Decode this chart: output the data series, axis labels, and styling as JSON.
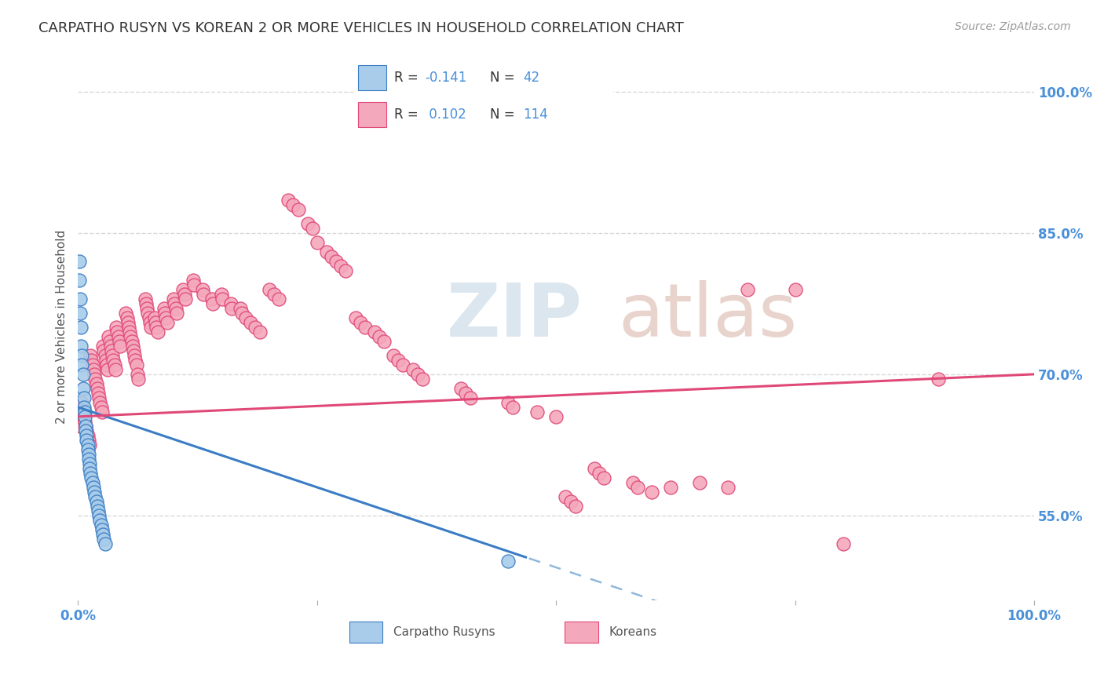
{
  "title": "CARPATHO RUSYN VS KOREAN 2 OR MORE VEHICLES IN HOUSEHOLD CORRELATION CHART",
  "source": "Source: ZipAtlas.com",
  "ylabel": "2 or more Vehicles in Household",
  "ytick_labels": [
    "100.0%",
    "85.0%",
    "70.0%",
    "55.0%"
  ],
  "ytick_values": [
    1.0,
    0.85,
    0.7,
    0.55
  ],
  "xlim": [
    0.0,
    1.0
  ],
  "ylim": [
    0.46,
    1.04
  ],
  "blue_R": -0.141,
  "blue_N": 42,
  "pink_R": 0.102,
  "pink_N": 114,
  "blue_scatter": [
    [
      0.001,
      0.82
    ],
    [
      0.001,
      0.8
    ],
    [
      0.002,
      0.78
    ],
    [
      0.002,
      0.765
    ],
    [
      0.003,
      0.75
    ],
    [
      0.003,
      0.73
    ],
    [
      0.004,
      0.72
    ],
    [
      0.004,
      0.71
    ],
    [
      0.005,
      0.7
    ],
    [
      0.005,
      0.685
    ],
    [
      0.006,
      0.675
    ],
    [
      0.006,
      0.665
    ],
    [
      0.007,
      0.66
    ],
    [
      0.007,
      0.655
    ],
    [
      0.008,
      0.645
    ],
    [
      0.008,
      0.64
    ],
    [
      0.009,
      0.635
    ],
    [
      0.009,
      0.63
    ],
    [
      0.01,
      0.625
    ],
    [
      0.01,
      0.62
    ],
    [
      0.011,
      0.615
    ],
    [
      0.011,
      0.61
    ],
    [
      0.012,
      0.605
    ],
    [
      0.012,
      0.6
    ],
    [
      0.013,
      0.595
    ],
    [
      0.014,
      0.59
    ],
    [
      0.015,
      0.585
    ],
    [
      0.016,
      0.58
    ],
    [
      0.017,
      0.575
    ],
    [
      0.018,
      0.57
    ],
    [
      0.019,
      0.565
    ],
    [
      0.02,
      0.56
    ],
    [
      0.021,
      0.555
    ],
    [
      0.022,
      0.55
    ],
    [
      0.023,
      0.545
    ],
    [
      0.024,
      0.54
    ],
    [
      0.025,
      0.535
    ],
    [
      0.026,
      0.53
    ],
    [
      0.027,
      0.525
    ],
    [
      0.028,
      0.52
    ],
    [
      0.45,
      0.502
    ]
  ],
  "pink_scatter": [
    [
      0.001,
      0.655
    ],
    [
      0.002,
      0.645
    ],
    [
      0.003,
      0.66
    ],
    [
      0.004,
      0.67
    ],
    [
      0.005,
      0.66
    ],
    [
      0.006,
      0.655
    ],
    [
      0.007,
      0.65
    ],
    [
      0.008,
      0.645
    ],
    [
      0.009,
      0.64
    ],
    [
      0.01,
      0.635
    ],
    [
      0.011,
      0.63
    ],
    [
      0.012,
      0.625
    ],
    [
      0.013,
      0.72
    ],
    [
      0.014,
      0.715
    ],
    [
      0.015,
      0.71
    ],
    [
      0.016,
      0.705
    ],
    [
      0.017,
      0.7
    ],
    [
      0.018,
      0.695
    ],
    [
      0.019,
      0.69
    ],
    [
      0.02,
      0.685
    ],
    [
      0.021,
      0.68
    ],
    [
      0.022,
      0.675
    ],
    [
      0.023,
      0.67
    ],
    [
      0.024,
      0.665
    ],
    [
      0.025,
      0.66
    ],
    [
      0.026,
      0.73
    ],
    [
      0.027,
      0.725
    ],
    [
      0.028,
      0.72
    ],
    [
      0.029,
      0.715
    ],
    [
      0.03,
      0.71
    ],
    [
      0.031,
      0.705
    ],
    [
      0.032,
      0.74
    ],
    [
      0.033,
      0.735
    ],
    [
      0.034,
      0.73
    ],
    [
      0.035,
      0.725
    ],
    [
      0.036,
      0.72
    ],
    [
      0.037,
      0.715
    ],
    [
      0.038,
      0.71
    ],
    [
      0.039,
      0.705
    ],
    [
      0.04,
      0.75
    ],
    [
      0.041,
      0.745
    ],
    [
      0.042,
      0.74
    ],
    [
      0.043,
      0.735
    ],
    [
      0.044,
      0.73
    ],
    [
      0.05,
      0.765
    ],
    [
      0.051,
      0.76
    ],
    [
      0.052,
      0.755
    ],
    [
      0.053,
      0.75
    ],
    [
      0.054,
      0.745
    ],
    [
      0.055,
      0.74
    ],
    [
      0.056,
      0.735
    ],
    [
      0.057,
      0.73
    ],
    [
      0.058,
      0.725
    ],
    [
      0.059,
      0.72
    ],
    [
      0.06,
      0.715
    ],
    [
      0.061,
      0.71
    ],
    [
      0.062,
      0.7
    ],
    [
      0.063,
      0.695
    ],
    [
      0.07,
      0.78
    ],
    [
      0.071,
      0.775
    ],
    [
      0.072,
      0.77
    ],
    [
      0.073,
      0.765
    ],
    [
      0.074,
      0.76
    ],
    [
      0.075,
      0.755
    ],
    [
      0.076,
      0.75
    ],
    [
      0.08,
      0.76
    ],
    [
      0.081,
      0.755
    ],
    [
      0.082,
      0.75
    ],
    [
      0.083,
      0.745
    ],
    [
      0.09,
      0.77
    ],
    [
      0.091,
      0.765
    ],
    [
      0.092,
      0.76
    ],
    [
      0.093,
      0.755
    ],
    [
      0.1,
      0.78
    ],
    [
      0.101,
      0.775
    ],
    [
      0.102,
      0.77
    ],
    [
      0.103,
      0.765
    ],
    [
      0.11,
      0.79
    ],
    [
      0.111,
      0.785
    ],
    [
      0.112,
      0.78
    ],
    [
      0.12,
      0.8
    ],
    [
      0.121,
      0.795
    ],
    [
      0.13,
      0.79
    ],
    [
      0.131,
      0.785
    ],
    [
      0.14,
      0.78
    ],
    [
      0.141,
      0.775
    ],
    [
      0.15,
      0.785
    ],
    [
      0.151,
      0.78
    ],
    [
      0.16,
      0.775
    ],
    [
      0.161,
      0.77
    ],
    [
      0.17,
      0.77
    ],
    [
      0.171,
      0.765
    ],
    [
      0.175,
      0.76
    ],
    [
      0.18,
      0.755
    ],
    [
      0.185,
      0.75
    ],
    [
      0.19,
      0.745
    ],
    [
      0.2,
      0.79
    ],
    [
      0.205,
      0.785
    ],
    [
      0.21,
      0.78
    ],
    [
      0.22,
      0.885
    ],
    [
      0.225,
      0.88
    ],
    [
      0.23,
      0.875
    ],
    [
      0.24,
      0.86
    ],
    [
      0.245,
      0.855
    ],
    [
      0.25,
      0.84
    ],
    [
      0.26,
      0.83
    ],
    [
      0.265,
      0.825
    ],
    [
      0.27,
      0.82
    ],
    [
      0.275,
      0.815
    ],
    [
      0.28,
      0.81
    ],
    [
      0.29,
      0.76
    ],
    [
      0.295,
      0.755
    ],
    [
      0.3,
      0.75
    ],
    [
      0.31,
      0.745
    ],
    [
      0.315,
      0.74
    ],
    [
      0.32,
      0.735
    ],
    [
      0.33,
      0.72
    ],
    [
      0.335,
      0.715
    ],
    [
      0.34,
      0.71
    ],
    [
      0.35,
      0.705
    ],
    [
      0.355,
      0.7
    ],
    [
      0.36,
      0.695
    ],
    [
      0.4,
      0.685
    ],
    [
      0.405,
      0.68
    ],
    [
      0.41,
      0.675
    ],
    [
      0.45,
      0.67
    ],
    [
      0.455,
      0.665
    ],
    [
      0.48,
      0.66
    ],
    [
      0.5,
      0.655
    ],
    [
      0.51,
      0.57
    ],
    [
      0.515,
      0.565
    ],
    [
      0.52,
      0.56
    ],
    [
      0.54,
      0.6
    ],
    [
      0.545,
      0.595
    ],
    [
      0.55,
      0.59
    ],
    [
      0.58,
      0.585
    ],
    [
      0.585,
      0.58
    ],
    [
      0.6,
      0.575
    ],
    [
      0.62,
      0.58
    ],
    [
      0.65,
      0.585
    ],
    [
      0.68,
      0.58
    ],
    [
      0.7,
      0.79
    ],
    [
      0.75,
      0.79
    ],
    [
      0.8,
      0.52
    ],
    [
      0.9,
      0.695
    ]
  ],
  "blue_color": "#A8CCEA",
  "pink_color": "#F4A8BC",
  "blue_line_color": "#3B7DC4",
  "pink_line_color": "#E04878",
  "blue_dashed_color": "#90B8DC",
  "title_color": "#333333",
  "axis_label_color": "#4A90D9",
  "grid_color": "#D8D8D8",
  "legend_border_color": "#BBBBBB",
  "source_color": "#999999",
  "legend_text_color_dark": "#333333",
  "legend_text_color_blue": "#4A90D9"
}
